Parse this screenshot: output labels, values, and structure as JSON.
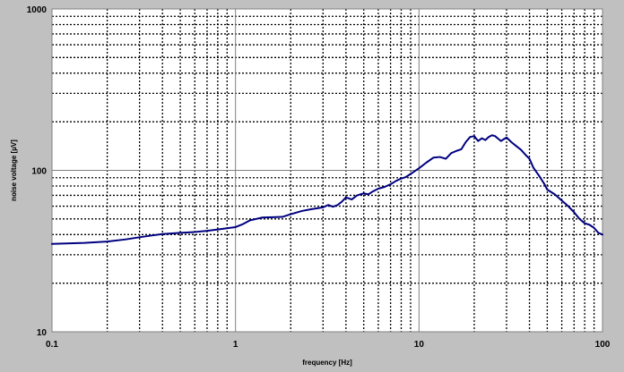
{
  "chart_data": {
    "type": "line",
    "title": "",
    "xlabel": "frequency [Hz]",
    "ylabel": "noise voltage [µV]",
    "x_scale": "log",
    "y_scale": "log",
    "xlim": [
      0.1,
      100
    ],
    "ylim": [
      10,
      1000
    ],
    "x_ticks": [
      {
        "value": 0.1,
        "label": "0.1"
      },
      {
        "value": 1,
        "label": "1"
      },
      {
        "value": 10,
        "label": "10"
      },
      {
        "value": 100,
        "label": "100"
      }
    ],
    "y_ticks": [
      {
        "value": 10,
        "label": "10"
      },
      {
        "value": 100,
        "label": "100"
      },
      {
        "value": 1000,
        "label": "1000"
      }
    ],
    "grid": true,
    "legend": "none",
    "colors": {
      "line": "#000080",
      "plot_bg": "#ffffff",
      "page_bg": "#c0c0c0"
    },
    "series": [
      {
        "x": [
          0.1,
          0.15,
          0.2,
          0.25,
          0.3,
          0.35,
          0.4,
          0.5,
          0.6,
          0.7,
          0.8,
          0.9,
          1.0,
          1.1,
          1.2,
          1.4,
          1.6,
          1.8,
          2.0,
          2.3,
          2.6,
          3.0,
          3.2,
          3.4,
          3.6,
          3.8,
          4.0,
          4.3,
          4.6,
          5.0,
          5.3,
          5.6,
          6.0,
          6.5,
          7.0,
          7.5,
          8.0,
          8.5,
          9.0,
          10.0,
          11.0,
          12.0,
          13.0,
          14.0,
          15.0,
          16.0,
          17.0,
          18.0,
          19.0,
          20.0,
          21.0,
          22.0,
          23.0,
          24.0,
          25.0,
          26.0,
          27.0,
          28.0,
          29.0,
          30.0,
          32.0,
          34.0,
          36.0,
          38.0,
          40.0,
          42.0,
          45.0,
          48.0,
          50.0,
          55.0,
          60.0,
          65.0,
          70.0,
          75.0,
          80.0,
          85.0,
          90.0,
          95.0,
          100.0
        ],
        "y": [
          35.0,
          35.5,
          36.2,
          37.3,
          38.5,
          39.5,
          40.3,
          41.0,
          41.5,
          42.2,
          43.0,
          43.8,
          44.5,
          46.5,
          49.0,
          51.0,
          51.3,
          51.5,
          53.5,
          56.0,
          57.5,
          59.0,
          61.0,
          59.5,
          61.0,
          64.0,
          68.0,
          66.0,
          70.0,
          72.0,
          71.0,
          74.0,
          77.0,
          79.0,
          82.0,
          86.0,
          89.0,
          91.0,
          95.0,
          103.0,
          112.0,
          120.0,
          121.0,
          118.0,
          128.0,
          132.0,
          135.0,
          150.0,
          161.0,
          163.0,
          152.0,
          158.0,
          154.0,
          161.0,
          165.0,
          163.0,
          157.0,
          152.0,
          156.0,
          160.0,
          149.0,
          141.0,
          134.0,
          125.0,
          118.0,
          104.0,
          93.0,
          83.0,
          76.0,
          71.0,
          65.0,
          60.0,
          55.0,
          50.0,
          47.0,
          46.0,
          44.0,
          41.0,
          40.0
        ]
      }
    ]
  }
}
